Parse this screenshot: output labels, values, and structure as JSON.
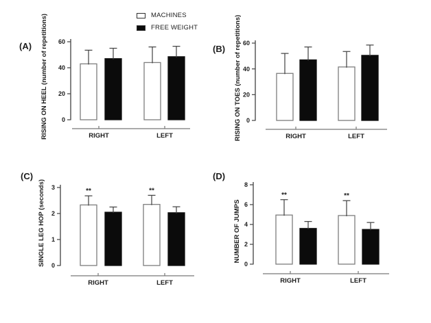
{
  "figure": {
    "legend": {
      "items": [
        {
          "name": "machines",
          "label": "MACHINES",
          "fill": "#ffffff"
        },
        {
          "name": "free-weight",
          "label": "FREE WEIGHT",
          "fill": "#0b0b0b"
        }
      ]
    },
    "colors": {
      "axis": "#4d4d4d",
      "baseline_offset_line": "#787878",
      "text": "#1c1c1c",
      "error_bar": "#3f3f3f",
      "white_bar_fill": "#ffffff",
      "white_bar_stroke": "#7d7d7d",
      "black_bar_fill": "#0b0b0b",
      "black_bar_stroke": "#111111"
    }
  },
  "chart_data": [
    {
      "id": "A",
      "panel_label": "(A)",
      "type": "bar",
      "title": "",
      "xlabel": "",
      "ylabel": "RISING ON HEEL (number of repetitions)",
      "ylim": [
        0,
        60
      ],
      "yticks": [
        0,
        20,
        40,
        60
      ],
      "grid": false,
      "categories": [
        "RIGHT",
        "LEFT"
      ],
      "series": [
        {
          "name": "MACHINES",
          "values": [
            43,
            44
          ],
          "errors": [
            10.5,
            12
          ],
          "sig": [
            "",
            ""
          ]
        },
        {
          "name": "FREE WEIGHT",
          "values": [
            47,
            48.5
          ],
          "errors": [
            8,
            8
          ],
          "sig": [
            "",
            ""
          ]
        }
      ]
    },
    {
      "id": "B",
      "panel_label": "(B)",
      "type": "bar",
      "title": "",
      "xlabel": "",
      "ylabel": "RISING ON TOES (number of repetitions)",
      "ylim": [
        0,
        60
      ],
      "yticks": [
        0,
        20,
        40,
        60
      ],
      "grid": false,
      "categories": [
        "RIGHT",
        "LEFT"
      ],
      "series": [
        {
          "name": "MACHINES",
          "values": [
            36.5,
            41.5
          ],
          "errors": [
            15.5,
            12
          ],
          "sig": [
            "",
            ""
          ]
        },
        {
          "name": "FREE WEIGHT",
          "values": [
            47,
            50.5
          ],
          "errors": [
            10,
            8
          ],
          "sig": [
            "",
            ""
          ]
        }
      ]
    },
    {
      "id": "C",
      "panel_label": "(C)",
      "type": "bar",
      "title": "",
      "xlabel": "",
      "ylabel": "SINGLE LEG HOP (seconds)",
      "ylim": [
        0,
        3
      ],
      "yticks": [
        0,
        1,
        2,
        3
      ],
      "grid": false,
      "categories": [
        "RIGHT",
        "LEFT"
      ],
      "series": [
        {
          "name": "MACHINES",
          "values": [
            2.33,
            2.35
          ],
          "errors": [
            0.35,
            0.35
          ],
          "sig": [
            "**",
            "**"
          ]
        },
        {
          "name": "FREE WEIGHT",
          "values": [
            2.05,
            2.03
          ],
          "errors": [
            0.2,
            0.23
          ],
          "sig": [
            "",
            ""
          ]
        }
      ]
    },
    {
      "id": "D",
      "panel_label": "(D)",
      "type": "bar",
      "title": "",
      "xlabel": "",
      "ylabel": "NUMBER OF JUMPS",
      "ylim": [
        0,
        8
      ],
      "yticks": [
        0,
        2,
        4,
        6,
        8
      ],
      "grid": false,
      "categories": [
        "RIGHT",
        "LEFT"
      ],
      "series": [
        {
          "name": "MACHINES",
          "values": [
            4.95,
            4.9
          ],
          "errors": [
            1.55,
            1.5
          ],
          "sig": [
            "**",
            "**"
          ]
        },
        {
          "name": "FREE WEIGHT",
          "values": [
            3.6,
            3.5
          ],
          "errors": [
            0.7,
            0.7
          ],
          "sig": [
            "",
            ""
          ]
        }
      ]
    }
  ]
}
